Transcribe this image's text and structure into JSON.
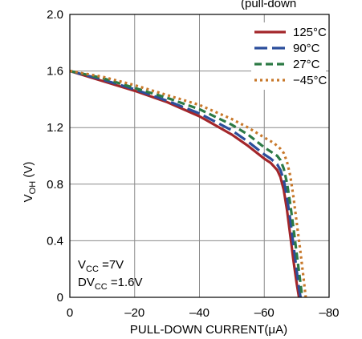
{
  "chart_data": {
    "type": "line",
    "title_fragment": "(pull-down",
    "xlabel": "PULL-DOWN CURRENT(μA)",
    "ylabel": {
      "main": "V",
      "sub": "OH",
      "suffix": " (V)"
    },
    "xlim": [
      0,
      -80
    ],
    "ylim": [
      0,
      2.0
    ],
    "x_ticks": [
      0,
      -20,
      -40,
      -60,
      -80
    ],
    "y_ticks": [
      0,
      0.4,
      0.8,
      1.2,
      1.6,
      2.0
    ],
    "x_tick_labels": [
      "0",
      "–20",
      "–40",
      "–60",
      "–80"
    ],
    "y_tick_labels": [
      "0",
      "0.4",
      "0.8",
      "1.2",
      "1.6",
      "2.0"
    ],
    "grid": true,
    "legend_position": "top-right",
    "annotations": [
      {
        "main": "V",
        "sub": "CC",
        "suffix": " =7V"
      },
      {
        "main": "DV",
        "sub": "CC",
        "suffix": " =1.6V"
      }
    ],
    "series": [
      {
        "name": "125°C",
        "color": "#a3262a",
        "dash": "solid",
        "points": [
          [
            0,
            1.6
          ],
          [
            -10,
            1.53
          ],
          [
            -20,
            1.46
          ],
          [
            -30,
            1.38
          ],
          [
            -40,
            1.28
          ],
          [
            -50,
            1.15
          ],
          [
            -55,
            1.07
          ],
          [
            -60,
            0.98
          ],
          [
            -62,
            0.95
          ],
          [
            -64,
            0.9
          ],
          [
            -65,
            0.85
          ],
          [
            -66,
            0.76
          ],
          [
            -67,
            0.62
          ],
          [
            -68,
            0.44
          ],
          [
            -69,
            0.26
          ],
          [
            -70,
            0.1
          ],
          [
            -70.7,
            0.0
          ]
        ]
      },
      {
        "name": "90°C",
        "color": "#2b4e9b",
        "dash": "long",
        "points": [
          [
            0,
            1.6
          ],
          [
            -10,
            1.54
          ],
          [
            -20,
            1.47
          ],
          [
            -30,
            1.39
          ],
          [
            -40,
            1.3
          ],
          [
            -50,
            1.18
          ],
          [
            -55,
            1.1
          ],
          [
            -60,
            1.01
          ],
          [
            -62,
            0.98
          ],
          [
            -64,
            0.94
          ],
          [
            -65,
            0.9
          ],
          [
            -66,
            0.83
          ],
          [
            -67,
            0.71
          ],
          [
            -68,
            0.55
          ],
          [
            -69,
            0.37
          ],
          [
            -70,
            0.19
          ],
          [
            -70.8,
            0.05
          ],
          [
            -71.2,
            0.0
          ]
        ]
      },
      {
        "name": "27°C",
        "color": "#2c7a45",
        "dash": "medium",
        "points": [
          [
            0,
            1.6
          ],
          [
            -10,
            1.55
          ],
          [
            -20,
            1.48
          ],
          [
            -30,
            1.41
          ],
          [
            -40,
            1.33
          ],
          [
            -50,
            1.22
          ],
          [
            -55,
            1.15
          ],
          [
            -60,
            1.06
          ],
          [
            -62,
            1.03
          ],
          [
            -64,
            1.0
          ],
          [
            -65,
            0.97
          ],
          [
            -66,
            0.91
          ],
          [
            -67,
            0.81
          ],
          [
            -68,
            0.66
          ],
          [
            -69,
            0.49
          ],
          [
            -70,
            0.31
          ],
          [
            -71,
            0.13
          ],
          [
            -71.7,
            0.0
          ]
        ]
      },
      {
        "name": "−45°C",
        "color": "#c8782a",
        "dash": "dotted",
        "points": [
          [
            0,
            1.6
          ],
          [
            -10,
            1.56
          ],
          [
            -20,
            1.5
          ],
          [
            -30,
            1.43
          ],
          [
            -40,
            1.36
          ],
          [
            -50,
            1.26
          ],
          [
            -55,
            1.2
          ],
          [
            -60,
            1.13
          ],
          [
            -63,
            1.09
          ],
          [
            -65,
            1.05
          ],
          [
            -66,
            1.02
          ],
          [
            -67,
            0.96
          ],
          [
            -68,
            0.86
          ],
          [
            -69,
            0.71
          ],
          [
            -70,
            0.53
          ],
          [
            -71,
            0.35
          ],
          [
            -72,
            0.16
          ],
          [
            -72.8,
            0.0
          ]
        ]
      }
    ]
  }
}
